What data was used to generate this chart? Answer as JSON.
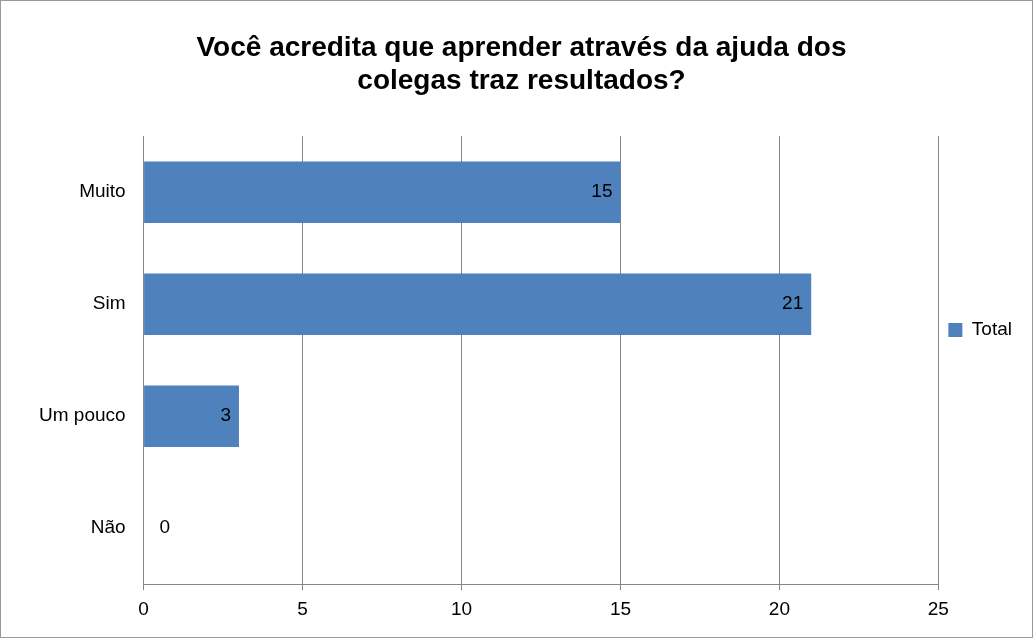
{
  "chart_data": {
    "type": "bar",
    "orientation": "horizontal",
    "title": "Você acredita que aprender através da ajuda dos colegas traz resultados?",
    "categories": [
      "Muito",
      "Sim",
      "Um pouco",
      "Não"
    ],
    "series": [
      {
        "name": "Total",
        "color": "#4f81bd",
        "values": [
          15,
          21,
          3,
          0
        ]
      }
    ],
    "xlim": [
      0,
      25
    ],
    "xticks": [
      0,
      5,
      10,
      15,
      20,
      25
    ],
    "grid": "x",
    "legend": "right",
    "data_labels": true
  }
}
